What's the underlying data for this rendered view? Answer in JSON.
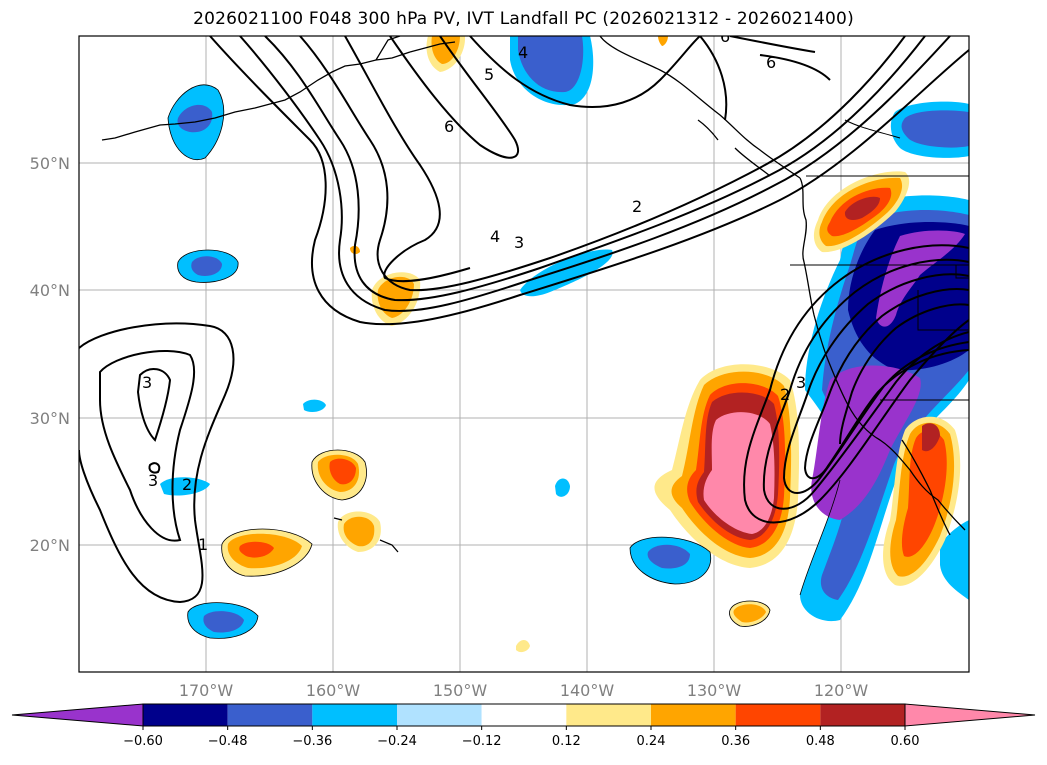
{
  "title": "2026021100 F048 300 hPa PV, IVT Landfall PC (2026021312 - 2026021400)",
  "lat_labels": [
    "50°N",
    "40°N",
    "30°N",
    "20°N"
  ],
  "lon_labels": [
    "170°W",
    "160°W",
    "150°W",
    "140°W",
    "130°W",
    "120°W"
  ],
  "colorbar": {
    "ticks": [
      "−0.60",
      "−0.48",
      "−0.36",
      "−0.24",
      "−0.12",
      "0.12",
      "0.24",
      "0.36",
      "0.48",
      "0.60"
    ],
    "colors": [
      "#9933cc",
      "#00008b",
      "#3a5fcd",
      "#00bfff",
      "#b0e2ff",
      "#ffffff",
      "#ffe98a",
      "#ffa500",
      "#ff4500",
      "#b22222",
      "#ff88aa"
    ]
  },
  "contour_labels": {
    "c1": "4",
    "c2": "5",
    "c3": "6",
    "c4": "6",
    "c5": "6",
    "c6": "2",
    "c7": "4",
    "c8": "3",
    "c9": "3",
    "c10": "3",
    "c11": "2",
    "c12": "1",
    "c13": "2",
    "c14": "3"
  }
}
